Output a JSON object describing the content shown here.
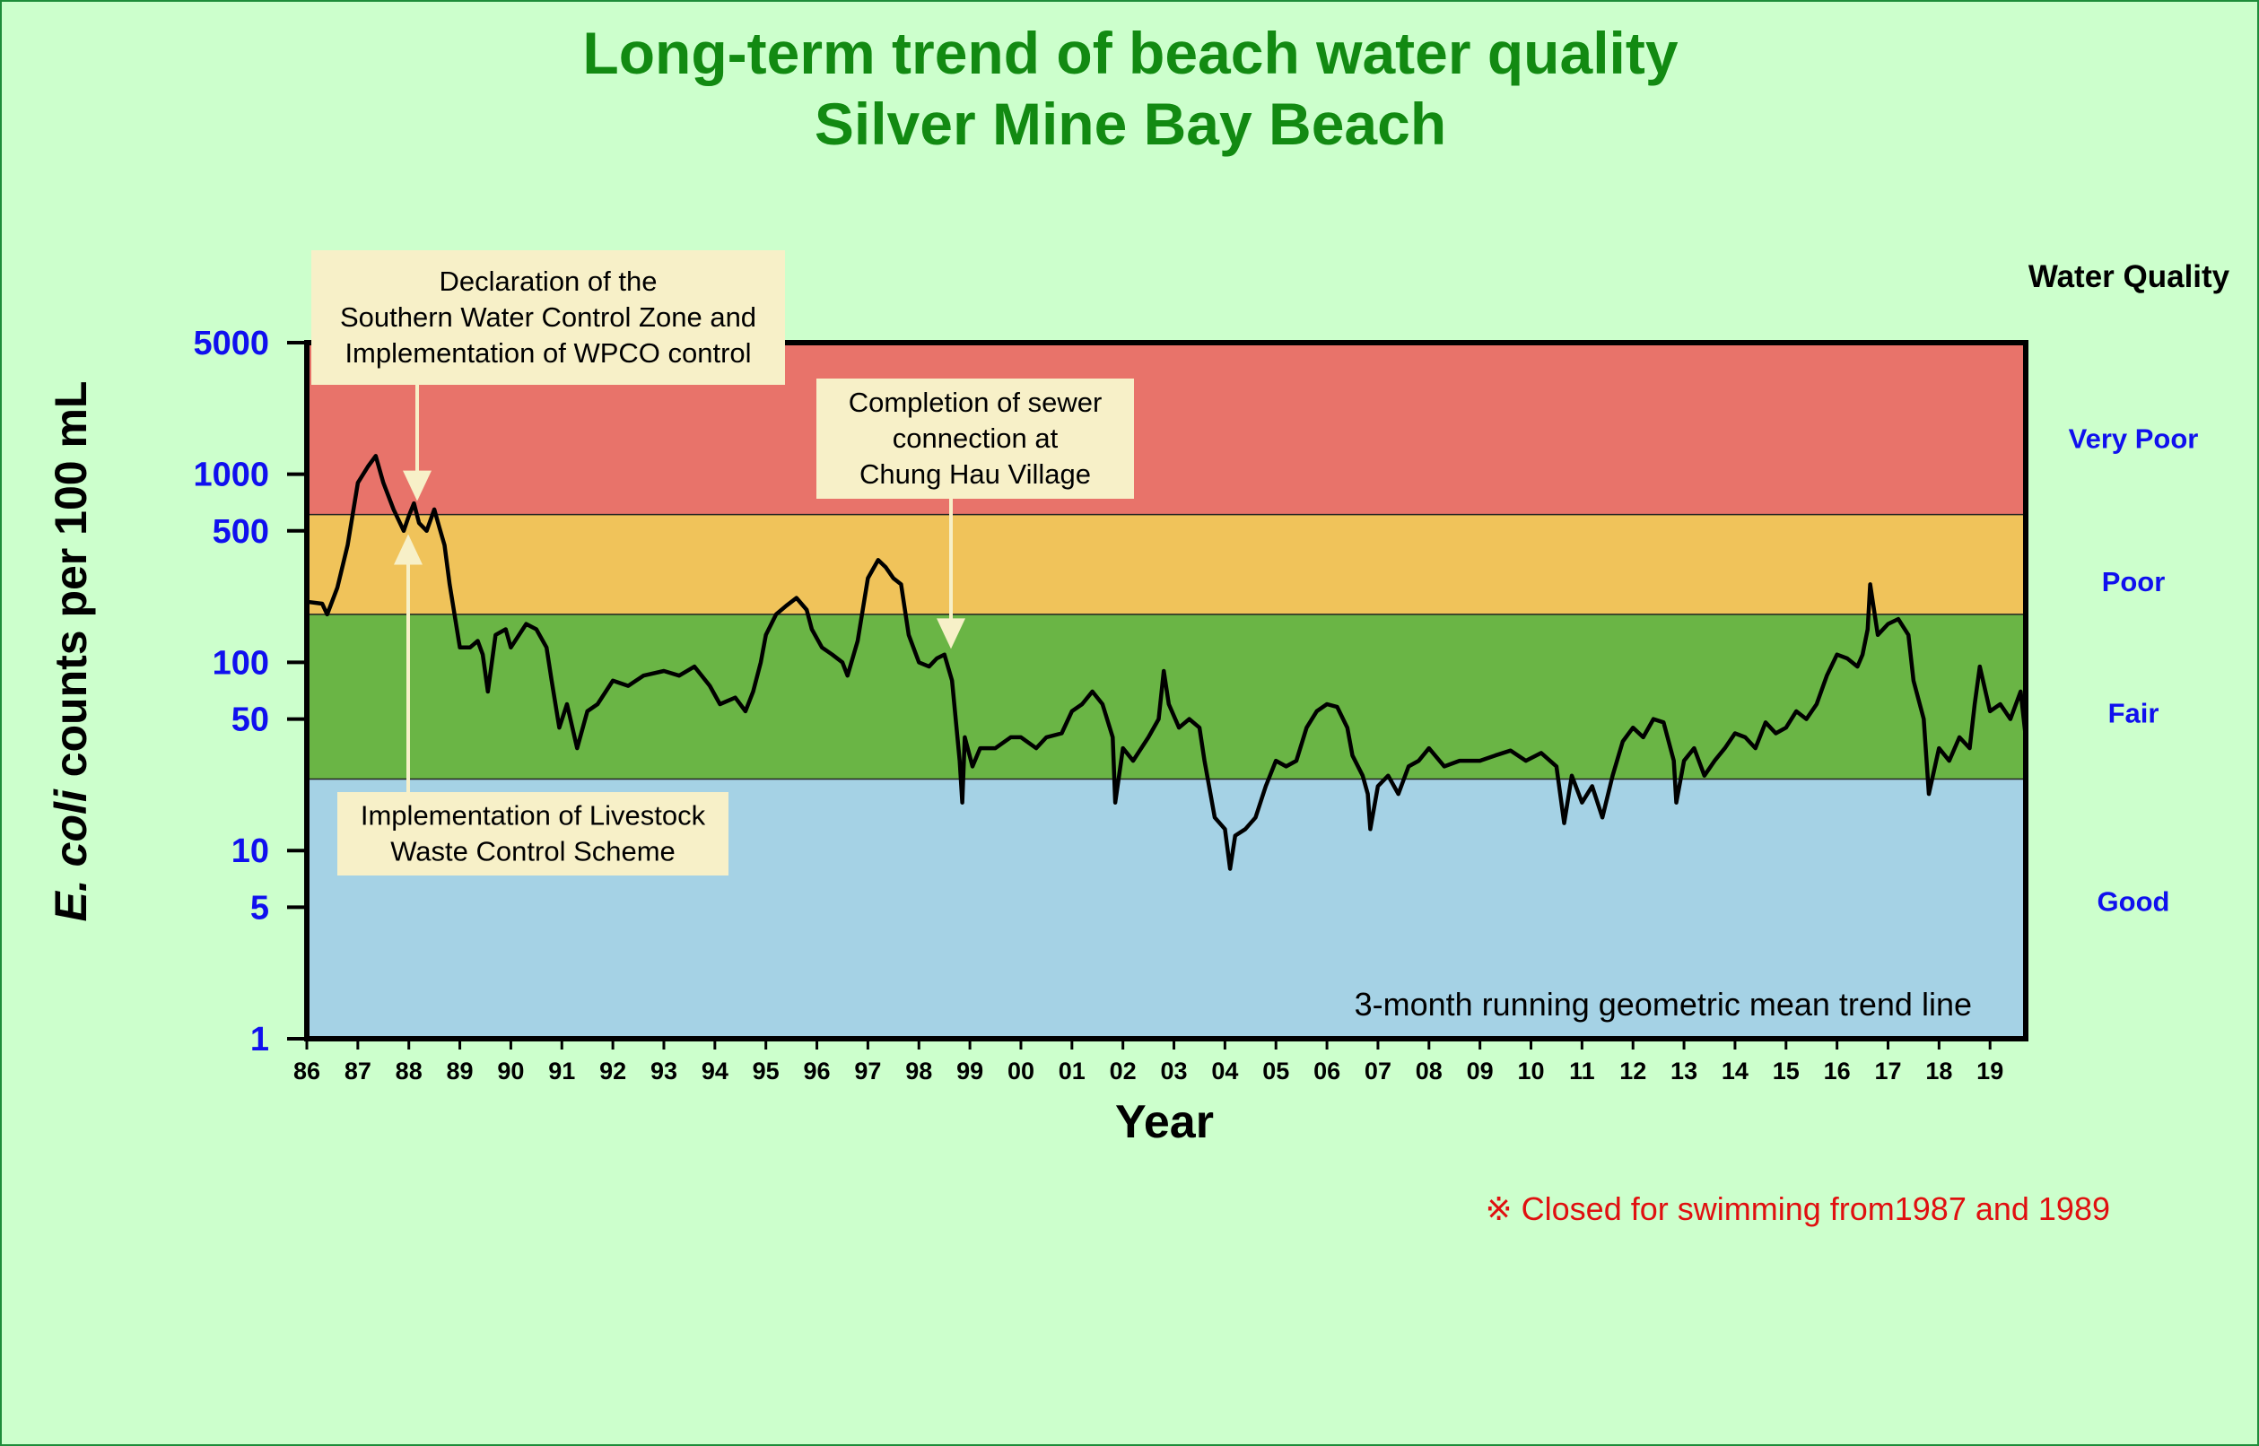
{
  "chart_data": {
    "type": "line",
    "title": "Long-term trend of beach water quality",
    "subtitle": "Silver Mine Bay Beach",
    "xlabel": "Year",
    "ylabel_italic": "E. coli",
    "ylabel_rest": " counts per 100 mL",
    "yscale": "log",
    "ylim": [
      1,
      5000
    ],
    "xlim": [
      1986,
      2019.7
    ],
    "y_ticks": [
      {
        "value": 5000,
        "label": "5000"
      },
      {
        "value": 1000,
        "label": "1000"
      },
      {
        "value": 500,
        "label": "500"
      },
      {
        "value": 100,
        "label": "100"
      },
      {
        "value": 50,
        "label": "50"
      },
      {
        "value": 10,
        "label": "10"
      },
      {
        "value": 5,
        "label": "5"
      },
      {
        "value": 1,
        "label": "1"
      }
    ],
    "x_ticks": [
      {
        "value": 1986,
        "label": "86"
      },
      {
        "value": 1987,
        "label": "87"
      },
      {
        "value": 1988,
        "label": "88"
      },
      {
        "value": 1989,
        "label": "89"
      },
      {
        "value": 1990,
        "label": "90"
      },
      {
        "value": 1991,
        "label": "91"
      },
      {
        "value": 1992,
        "label": "92"
      },
      {
        "value": 1993,
        "label": "93"
      },
      {
        "value": 1994,
        "label": "94"
      },
      {
        "value": 1995,
        "label": "95"
      },
      {
        "value": 1996,
        "label": "96"
      },
      {
        "value": 1997,
        "label": "97"
      },
      {
        "value": 1998,
        "label": "98"
      },
      {
        "value": 1999,
        "label": "99"
      },
      {
        "value": 2000,
        "label": "00"
      },
      {
        "value": 2001,
        "label": "01"
      },
      {
        "value": 2002,
        "label": "02"
      },
      {
        "value": 2003,
        "label": "03"
      },
      {
        "value": 2004,
        "label": "04"
      },
      {
        "value": 2005,
        "label": "05"
      },
      {
        "value": 2006,
        "label": "06"
      },
      {
        "value": 2007,
        "label": "07"
      },
      {
        "value": 2008,
        "label": "08"
      },
      {
        "value": 2009,
        "label": "09"
      },
      {
        "value": 2010,
        "label": "10"
      },
      {
        "value": 2011,
        "label": "11"
      },
      {
        "value": 2012,
        "label": "12"
      },
      {
        "value": 2013,
        "label": "13"
      },
      {
        "value": 2014,
        "label": "14"
      },
      {
        "value": 2015,
        "label": "15"
      },
      {
        "value": 2016,
        "label": "16"
      },
      {
        "value": 2017,
        "label": "17"
      },
      {
        "value": 2018,
        "label": "18"
      },
      {
        "value": 2019,
        "label": "19"
      }
    ],
    "legend_title": "Water Quality",
    "bands": [
      {
        "name": "Very Poor",
        "from": 610,
        "to": 5000,
        "color": "#e8736a",
        "label_at": 1550
      },
      {
        "name": "Poor",
        "from": 180,
        "to": 610,
        "color": "#f0c35a",
        "label_at": 270
      },
      {
        "name": "Fair",
        "from": 24,
        "to": 180,
        "color": "#6ab545",
        "label_at": 54
      },
      {
        "name": "Good",
        "from": 1,
        "to": 24,
        "color": "#a5d2e5",
        "label_at": 5.4
      }
    ],
    "series": [
      {
        "name": "3-month running geometric mean trend line",
        "color": "#000000",
        "points": [
          [
            1986.0,
            210
          ],
          [
            1986.3,
            205
          ],
          [
            1986.4,
            180
          ],
          [
            1986.6,
            250
          ],
          [
            1986.8,
            420
          ],
          [
            1987.0,
            900
          ],
          [
            1987.2,
            1100
          ],
          [
            1987.35,
            1250
          ],
          [
            1987.5,
            900
          ],
          [
            1987.7,
            650
          ],
          [
            1987.9,
            500
          ],
          [
            1988.0,
            600
          ],
          [
            1988.1,
            700
          ],
          [
            1988.2,
            550
          ],
          [
            1988.35,
            500
          ],
          [
            1988.5,
            650
          ],
          [
            1988.6,
            520
          ],
          [
            1988.7,
            420
          ],
          [
            1988.8,
            260
          ],
          [
            1989.0,
            120
          ],
          [
            1989.2,
            120
          ],
          [
            1989.35,
            130
          ],
          [
            1989.45,
            110
          ],
          [
            1989.55,
            70
          ],
          [
            1989.7,
            140
          ],
          [
            1989.9,
            150
          ],
          [
            1990.0,
            120
          ],
          [
            1990.3,
            160
          ],
          [
            1990.5,
            150
          ],
          [
            1990.7,
            120
          ],
          [
            1990.8,
            80
          ],
          [
            1990.95,
            45
          ],
          [
            1991.1,
            60
          ],
          [
            1991.3,
            35
          ],
          [
            1991.5,
            55
          ],
          [
            1991.7,
            60
          ],
          [
            1992.0,
            80
          ],
          [
            1992.3,
            75
          ],
          [
            1992.6,
            85
          ],
          [
            1993.0,
            90
          ],
          [
            1993.3,
            85
          ],
          [
            1993.6,
            95
          ],
          [
            1993.9,
            75
          ],
          [
            1994.1,
            60
          ],
          [
            1994.4,
            65
          ],
          [
            1994.6,
            55
          ],
          [
            1994.75,
            70
          ],
          [
            1994.9,
            100
          ],
          [
            1995.0,
            140
          ],
          [
            1995.2,
            180
          ],
          [
            1995.4,
            200
          ],
          [
            1995.6,
            220
          ],
          [
            1995.8,
            190
          ],
          [
            1995.9,
            150
          ],
          [
            1996.1,
            120
          ],
          [
            1996.3,
            110
          ],
          [
            1996.5,
            100
          ],
          [
            1996.6,
            85
          ],
          [
            1996.8,
            130
          ],
          [
            1997.0,
            280
          ],
          [
            1997.2,
            350
          ],
          [
            1997.35,
            320
          ],
          [
            1997.5,
            280
          ],
          [
            1997.65,
            260
          ],
          [
            1997.8,
            140
          ],
          [
            1998.0,
            100
          ],
          [
            1998.2,
            95
          ],
          [
            1998.35,
            105
          ],
          [
            1998.5,
            110
          ],
          [
            1998.65,
            80
          ],
          [
            1998.8,
            30
          ],
          [
            1998.85,
            18
          ],
          [
            1998.9,
            40
          ],
          [
            1999.05,
            28
          ],
          [
            1999.2,
            35
          ],
          [
            1999.5,
            35
          ],
          [
            1999.8,
            40
          ],
          [
            2000.0,
            40
          ],
          [
            2000.3,
            35
          ],
          [
            2000.5,
            40
          ],
          [
            2000.8,
            42
          ],
          [
            2001.0,
            55
          ],
          [
            2001.2,
            60
          ],
          [
            2001.4,
            70
          ],
          [
            2001.6,
            60
          ],
          [
            2001.8,
            40
          ],
          [
            2001.85,
            18
          ],
          [
            2002.0,
            35
          ],
          [
            2002.2,
            30
          ],
          [
            2002.5,
            40
          ],
          [
            2002.7,
            50
          ],
          [
            2002.8,
            90
          ],
          [
            2002.9,
            60
          ],
          [
            2003.1,
            45
          ],
          [
            2003.3,
            50
          ],
          [
            2003.5,
            45
          ],
          [
            2003.6,
            30
          ],
          [
            2003.8,
            15
          ],
          [
            2004.0,
            13
          ],
          [
            2004.1,
            8
          ],
          [
            2004.2,
            12
          ],
          [
            2004.4,
            13
          ],
          [
            2004.6,
            15
          ],
          [
            2004.8,
            22
          ],
          [
            2005.0,
            30
          ],
          [
            2005.2,
            28
          ],
          [
            2005.4,
            30
          ],
          [
            2005.6,
            45
          ],
          [
            2005.8,
            55
          ],
          [
            2006.0,
            60
          ],
          [
            2006.2,
            58
          ],
          [
            2006.4,
            45
          ],
          [
            2006.5,
            32
          ],
          [
            2006.7,
            25
          ],
          [
            2006.8,
            20
          ],
          [
            2006.85,
            13
          ],
          [
            2007.0,
            22
          ],
          [
            2007.2,
            25
          ],
          [
            2007.4,
            20
          ],
          [
            2007.6,
            28
          ],
          [
            2007.8,
            30
          ],
          [
            2008.0,
            35
          ],
          [
            2008.3,
            28
          ],
          [
            2008.6,
            30
          ],
          [
            2009.0,
            30
          ],
          [
            2009.3,
            32
          ],
          [
            2009.6,
            34
          ],
          [
            2009.9,
            30
          ],
          [
            2010.2,
            33
          ],
          [
            2010.5,
            28
          ],
          [
            2010.65,
            14
          ],
          [
            2010.8,
            25
          ],
          [
            2011.0,
            18
          ],
          [
            2011.2,
            22
          ],
          [
            2011.4,
            15
          ],
          [
            2011.6,
            25
          ],
          [
            2011.8,
            38
          ],
          [
            2012.0,
            45
          ],
          [
            2012.2,
            40
          ],
          [
            2012.4,
            50
          ],
          [
            2012.6,
            48
          ],
          [
            2012.8,
            30
          ],
          [
            2012.85,
            18
          ],
          [
            2013.0,
            30
          ],
          [
            2013.2,
            35
          ],
          [
            2013.4,
            25
          ],
          [
            2013.6,
            30
          ],
          [
            2013.8,
            35
          ],
          [
            2014.0,
            42
          ],
          [
            2014.2,
            40
          ],
          [
            2014.4,
            35
          ],
          [
            2014.6,
            48
          ],
          [
            2014.8,
            42
          ],
          [
            2015.0,
            45
          ],
          [
            2015.2,
            55
          ],
          [
            2015.4,
            50
          ],
          [
            2015.6,
            60
          ],
          [
            2015.8,
            85
          ],
          [
            2016.0,
            110
          ],
          [
            2016.2,
            105
          ],
          [
            2016.4,
            95
          ],
          [
            2016.5,
            110
          ],
          [
            2016.6,
            150
          ],
          [
            2016.65,
            260
          ],
          [
            2016.8,
            140
          ],
          [
            2017.0,
            160
          ],
          [
            2017.2,
            170
          ],
          [
            2017.4,
            140
          ],
          [
            2017.5,
            80
          ],
          [
            2017.7,
            50
          ],
          [
            2017.8,
            20
          ],
          [
            2018.0,
            35
          ],
          [
            2018.2,
            30
          ],
          [
            2018.4,
            40
          ],
          [
            2018.6,
            35
          ],
          [
            2018.7,
            60
          ],
          [
            2018.8,
            95
          ],
          [
            2019.0,
            55
          ],
          [
            2019.2,
            60
          ],
          [
            2019.4,
            50
          ],
          [
            2019.6,
            70
          ],
          [
            2019.7,
            40
          ]
        ]
      }
    ],
    "annotations": [
      {
        "lines": [
          "Declaration of the",
          "Southern Water Control Zone and",
          "Implementation of WPCO control"
        ],
        "x": 1988.15,
        "y": 720
      },
      {
        "lines": [
          "Completion of sewer",
          "connection at",
          "Chung Hau Village"
        ],
        "x": 1998.65,
        "y": 118
      },
      {
        "lines": [
          "Implementation of Livestock",
          "Waste Control Scheme"
        ],
        "x": 1987.95,
        "y": 480
      }
    ]
  },
  "trend_note": "3-month running geometric mean trend line",
  "closed_note": "※ Closed for swimming from1987 and 1989"
}
